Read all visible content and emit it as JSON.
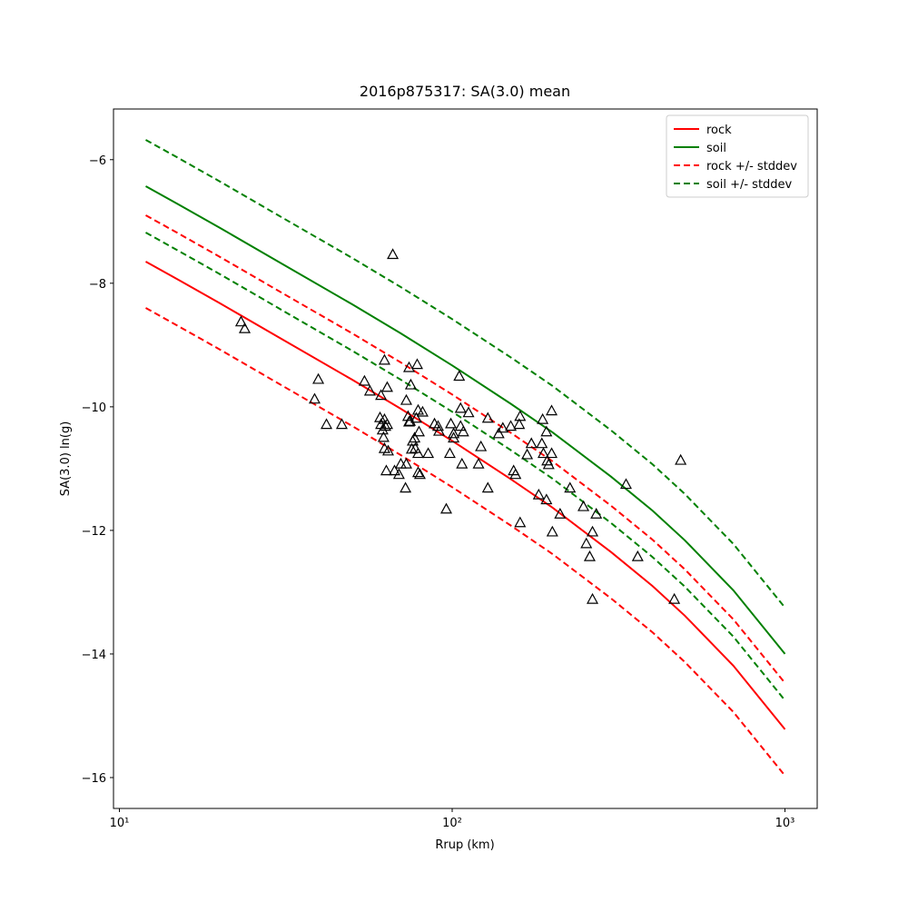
{
  "chart_data": {
    "type": "scatter_lines",
    "title": "2016p875317: SA(3.0) mean",
    "x_label": "Rrup (km)",
    "y_label": "SA(3.0) ln(g)",
    "xscale": "log",
    "xlim": [
      9.6,
      1250
    ],
    "ylim": [
      -16.5,
      -5.18
    ],
    "xticks": [
      {
        "value": 10,
        "label": "10¹"
      },
      {
        "value": 100,
        "label": "10²"
      },
      {
        "value": 1000,
        "label": "10³"
      }
    ],
    "yticks": [
      {
        "value": -6,
        "label": "−6"
      },
      {
        "value": -8,
        "label": "−8"
      },
      {
        "value": -10,
        "label": "−10"
      },
      {
        "value": -12,
        "label": "−12"
      },
      {
        "value": -14,
        "label": "−14"
      },
      {
        "value": -16,
        "label": "−16"
      }
    ],
    "legend": "upper right",
    "x": [
      12,
      15,
      20,
      30,
      50,
      70,
      100,
      150,
      200,
      300,
      400,
      500,
      700,
      1000
    ],
    "series": [
      {
        "name": "rock",
        "color": "#ff0000",
        "dashed": false,
        "values": [
          -7.65,
          -7.94,
          -8.32,
          -8.87,
          -9.56,
          -10.03,
          -10.55,
          -11.17,
          -11.63,
          -12.35,
          -12.9,
          -13.38,
          -14.19,
          -15.22
        ]
      },
      {
        "name": "soil",
        "color": "#008000",
        "dashed": false,
        "values": [
          -6.43,
          -6.72,
          -7.1,
          -7.65,
          -8.34,
          -8.81,
          -9.33,
          -9.95,
          -10.41,
          -11.13,
          -11.68,
          -12.16,
          -12.97,
          -14.0
        ]
      },
      {
        "name": "rock +/- stddev",
        "color": "#ff0000",
        "dashed": true,
        "upper": [
          -6.9,
          -7.19,
          -7.57,
          -8.12,
          -8.81,
          -9.28,
          -9.8,
          -10.42,
          -10.88,
          -11.6,
          -12.15,
          -12.63,
          -13.44,
          -14.47
        ],
        "lower": [
          -8.4,
          -8.69,
          -9.07,
          -9.62,
          -10.31,
          -10.78,
          -11.3,
          -11.92,
          -12.38,
          -13.1,
          -13.65,
          -14.13,
          -14.94,
          -15.97
        ]
      },
      {
        "name": "soil +/- stddev",
        "color": "#008000",
        "dashed": true,
        "upper": [
          -5.68,
          -5.97,
          -6.35,
          -6.9,
          -7.59,
          -8.06,
          -8.58,
          -9.2,
          -9.66,
          -10.38,
          -10.93,
          -11.41,
          -12.22,
          -13.25
        ],
        "lower": [
          -7.18,
          -7.47,
          -7.85,
          -8.4,
          -9.09,
          -9.56,
          -10.08,
          -10.7,
          -11.16,
          -11.88,
          -12.43,
          -12.91,
          -13.72,
          -14.75
        ]
      }
    ],
    "points": {
      "color": "#000000",
      "x": [
        23.2,
        23.8,
        39.6,
        38.6,
        41.9,
        46.6,
        54.5,
        56.6,
        61.1,
        60.7,
        61.1,
        61.8,
        62.6,
        63.0,
        63.8,
        62.2,
        62.6,
        64.2,
        63.4,
        67.1,
        70.1,
        69.2,
        72.4,
        72.8,
        62.6,
        63.8,
        66.3,
        74.2,
        75.1,
        72.8,
        73.7,
        74.7,
        74.2,
        76.1,
        77.5,
        75.6,
        77.1,
        78.5,
        79.0,
        78.0,
        79.5,
        81.5,
        79.0,
        79.0,
        80.0,
        84.7,
        88.5,
        90.7,
        91.3,
        96.0,
        99.1,
        98.4,
        101,
        101,
        105,
        106,
        106,
        108,
        107,
        112,
        120,
        122,
        128,
        128,
        138,
        142,
        150,
        153,
        155,
        160,
        159,
        160,
        168,
        173,
        182,
        186,
        187,
        188,
        192,
        192,
        193,
        195,
        199,
        199,
        200,
        211,
        226,
        248,
        253,
        259,
        264,
        264,
        271,
        333,
        361,
        465,
        486
      ],
      "y": [
        -8.63,
        -8.74,
        -9.56,
        -9.88,
        -10.29,
        -10.29,
        -9.59,
        -9.75,
        -9.82,
        -10.18,
        -10.29,
        -10.38,
        -10.21,
        -10.32,
        -10.29,
        -10.5,
        -10.68,
        -10.72,
        -11.04,
        -11.04,
        -10.93,
        -11.1,
        -11.32,
        -10.93,
        -9.25,
        -9.69,
        -7.54,
        -9.37,
        -9.65,
        -9.9,
        -10.16,
        -10.24,
        -10.25,
        -10.56,
        -10.68,
        -10.69,
        -10.51,
        -9.32,
        -10.06,
        -10.19,
        -10.41,
        -10.09,
        -10.76,
        -11.07,
        -11.1,
        -10.76,
        -10.28,
        -10.32,
        -10.4,
        -11.66,
        -10.28,
        -10.76,
        -10.44,
        -10.51,
        -9.51,
        -10.03,
        -10.32,
        -10.41,
        -10.93,
        -10.1,
        -10.93,
        -10.65,
        -10.19,
        -11.32,
        -10.44,
        -10.35,
        -10.32,
        -11.04,
        -11.1,
        -10.16,
        -10.29,
        -11.88,
        -10.78,
        -10.6,
        -11.43,
        -10.6,
        -10.21,
        -10.76,
        -10.41,
        -11.51,
        -10.88,
        -10.94,
        -10.07,
        -10.76,
        -12.03,
        -11.74,
        -11.32,
        -11.62,
        -12.22,
        -12.43,
        -12.03,
        -13.12,
        -11.74,
        -11.26,
        -12.43,
        -13.12,
        -10.87
      ]
    }
  }
}
